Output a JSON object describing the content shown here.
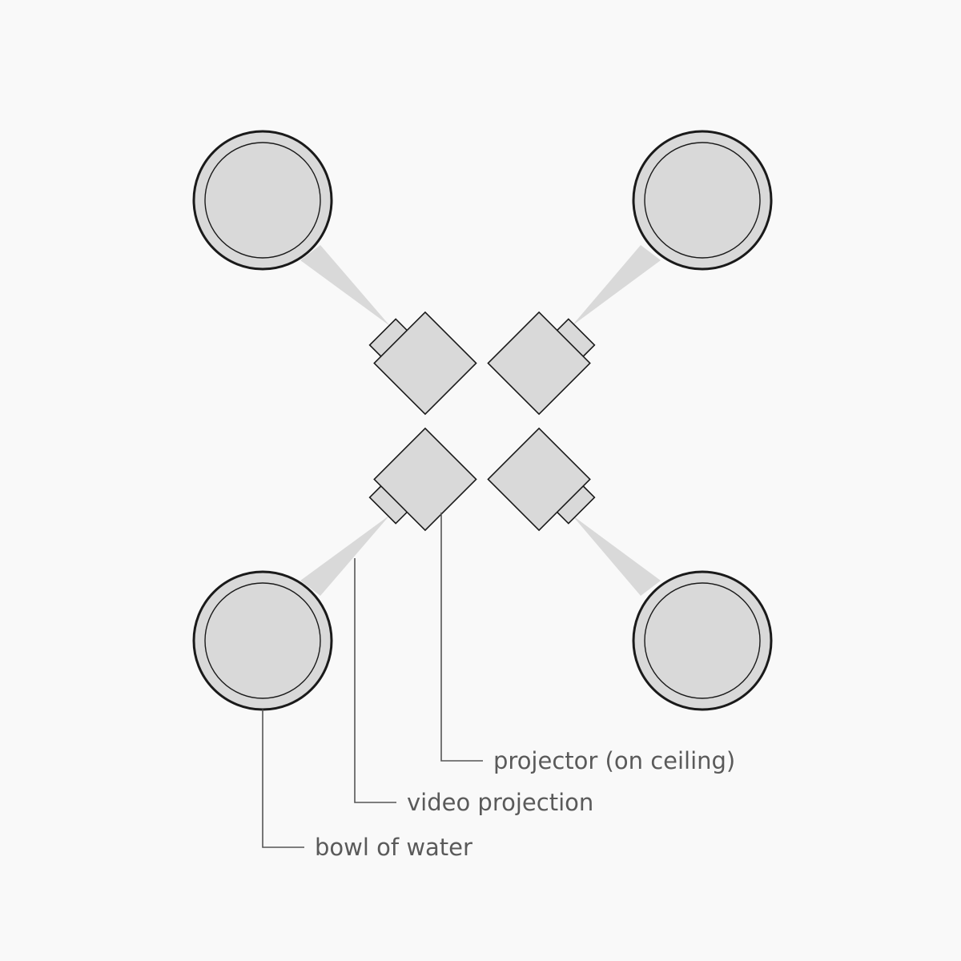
{
  "colors": {
    "background": "#f9f9f9",
    "fill": "#d9d9d9",
    "stroke": "#1a1a1a",
    "leader_line": "#555555",
    "label_text": "#5a5a5a"
  },
  "labels": {
    "projector": "projector (on ceiling)",
    "projection": "video projection",
    "bowl": "bowl of water"
  }
}
